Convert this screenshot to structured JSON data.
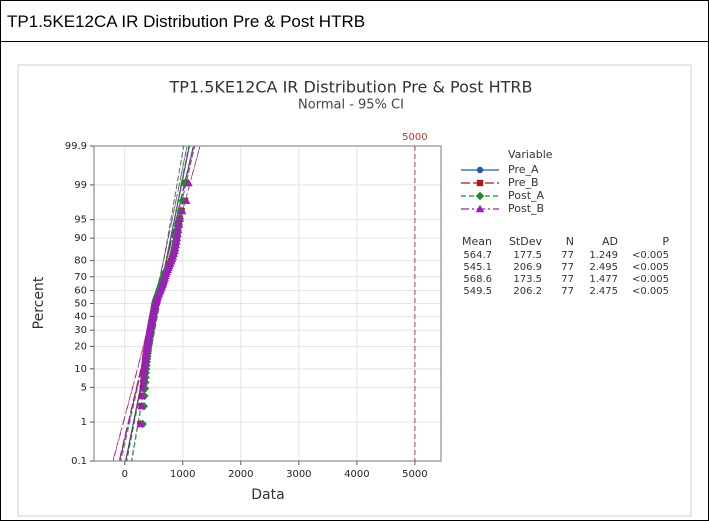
{
  "header": "TP1.5KE12CA IR Distribution Pre & Post HTRB",
  "chart_data": {
    "type": "probability",
    "title": "TP1.5KE12CA IR Distribution Pre & Post HTRB",
    "subtitle": "Normal - 95% CI",
    "xlabel": "Data",
    "ylabel": "Percent",
    "xlim": [
      -530,
      5450
    ],
    "xticks": [
      0,
      1000,
      2000,
      3000,
      4000,
      5000
    ],
    "ylim": [
      0.1,
      99.9
    ],
    "yticks": [
      0.1,
      1,
      5,
      10,
      20,
      30,
      40,
      50,
      60,
      70,
      80,
      90,
      95,
      99,
      99.9
    ],
    "grid": true,
    "reference_line": 5000,
    "reference_color": "#c0392b",
    "legend_title": "Variable",
    "series": [
      {
        "name": "Pre_A",
        "color": "#1f5aa6",
        "marker": "circle",
        "dash": "",
        "values": [
          300,
          320,
          330,
          340,
          345,
          350,
          355,
          360,
          365,
          370,
          375,
          380,
          385,
          390,
          395,
          400,
          405,
          410,
          415,
          420,
          425,
          430,
          435,
          440,
          445,
          450,
          455,
          460,
          465,
          470,
          475,
          480,
          485,
          490,
          495,
          500,
          505,
          510,
          515,
          520,
          530,
          540,
          550,
          560,
          570,
          580,
          590,
          600,
          610,
          620,
          630,
          640,
          650,
          660,
          670,
          680,
          700,
          720,
          740,
          760,
          780,
          800,
          810,
          820,
          830,
          840,
          850,
          860,
          870,
          880,
          890,
          900,
          920,
          940,
          960,
          1000,
          1020
        ]
      },
      {
        "name": "Pre_B",
        "color": "#a11d21",
        "marker": "square",
        "dash": "9 3",
        "values": [
          270,
          290,
          300,
          310,
          320,
          330,
          335,
          340,
          345,
          350,
          355,
          360,
          368,
          375,
          382,
          390,
          396,
          402,
          408,
          414,
          420,
          426,
          432,
          438,
          444,
          450,
          456,
          462,
          468,
          474,
          480,
          486,
          492,
          498,
          504,
          510,
          516,
          522,
          528,
          534,
          545,
          556,
          567,
          578,
          590,
          602,
          614,
          626,
          638,
          650,
          660,
          670,
          680,
          690,
          700,
          710,
          725,
          740,
          755,
          770,
          785,
          800,
          815,
          830,
          845,
          860,
          870,
          880,
          890,
          900,
          910,
          920,
          935,
          950,
          980,
          1040,
          1060
        ]
      },
      {
        "name": "Post_A",
        "color": "#228b22",
        "marker": "diamond",
        "dash": "5 3",
        "values": [
          310,
          330,
          340,
          350,
          355,
          360,
          365,
          370,
          375,
          380,
          385,
          390,
          395,
          400,
          405,
          410,
          415,
          420,
          425,
          430,
          435,
          440,
          445,
          450,
          455,
          460,
          465,
          470,
          475,
          480,
          485,
          490,
          495,
          500,
          505,
          510,
          515,
          520,
          525,
          530,
          540,
          550,
          560,
          570,
          580,
          590,
          600,
          610,
          620,
          630,
          640,
          650,
          660,
          670,
          680,
          690,
          710,
          730,
          750,
          770,
          790,
          810,
          820,
          830,
          840,
          850,
          860,
          870,
          880,
          890,
          900,
          910,
          930,
          950,
          970,
          1000,
          1030
        ]
      },
      {
        "name": "Post_B",
        "color": "#9b1fb8",
        "marker": "triangle",
        "dash": "8 3 2 3",
        "values": [
          275,
          292,
          302,
          312,
          322,
          330,
          336,
          342,
          348,
          354,
          360,
          366,
          372,
          378,
          384,
          390,
          396,
          402,
          408,
          414,
          420,
          426,
          432,
          438,
          444,
          450,
          456,
          462,
          468,
          474,
          480,
          486,
          492,
          498,
          504,
          510,
          516,
          522,
          528,
          534,
          545,
          556,
          567,
          578,
          590,
          602,
          614,
          626,
          638,
          650,
          660,
          670,
          680,
          690,
          700,
          710,
          725,
          740,
          755,
          770,
          785,
          800,
          815,
          830,
          845,
          860,
          870,
          880,
          890,
          900,
          910,
          920,
          935,
          950,
          990,
          1060,
          1100
        ]
      }
    ],
    "stats": {
      "headers": [
        "Mean",
        "StDev",
        "N",
        "AD",
        "P"
      ],
      "rows": [
        [
          564.7,
          177.5,
          77,
          1.249,
          "<0.005"
        ],
        [
          545.1,
          206.9,
          77,
          2.495,
          "<0.005"
        ],
        [
          568.6,
          173.5,
          77,
          1.477,
          "<0.005"
        ],
        [
          549.5,
          206.2,
          77,
          2.475,
          "<0.005"
        ]
      ]
    }
  }
}
